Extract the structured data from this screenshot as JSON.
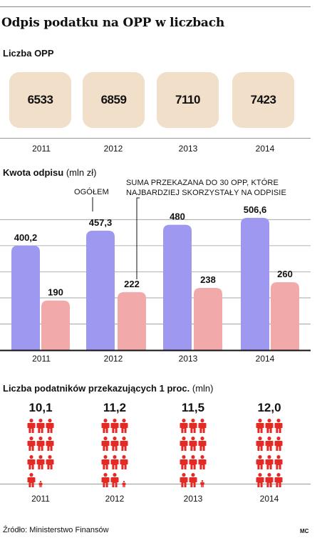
{
  "title": "Odpis podatku na OPP w liczbach",
  "sections": {
    "opp_count": {
      "title": "Liczba OPP"
    },
    "amount": {
      "title": "Kwota odpisu",
      "unit": "(mln zł)"
    },
    "taxpayers": {
      "title": "Liczba podatników przekazujących 1 proc.",
      "unit": "(mln)"
    }
  },
  "annotations": {
    "total": "OGÓŁEM",
    "top30_line1": "SUMA PRZEKAZANA DO 30 OPP, KTÓRE",
    "top30_line2": "NAJBARDZIEJ SKORZYSTAŁY NA ODPISIE"
  },
  "source": "Źródło: Ministerstwo Finansów",
  "credit": "MC",
  "colors": {
    "card": "#f1dfc9",
    "total_bar": "#9e98f0",
    "top30_bar": "#f2a9aa",
    "person": "#e52a25",
    "grid": "#9a9a9a"
  },
  "chart_data": [
    {
      "type": "table",
      "categories": [
        "2011",
        "2012",
        "2013",
        "2014"
      ],
      "values": [
        "6533",
        "6859",
        "7110",
        "7423"
      ]
    },
    {
      "type": "bar",
      "categories": [
        "2011",
        "2012",
        "2013",
        "2014"
      ],
      "series": [
        {
          "name": "OGÓŁEM",
          "values": [
            400.2,
            457.3,
            480,
            506.6
          ],
          "labels": [
            "400,2",
            "457,3",
            "480",
            "506,6"
          ]
        },
        {
          "name": "SUMA PRZEKAZANA DO 30 OPP, KTÓRE NAJBARDZIEJ SKORZYSTAŁY NA ODPISIE",
          "values": [
            190,
            222,
            238,
            260
          ],
          "labels": [
            "190",
            "222",
            "238",
            "260"
          ]
        }
      ],
      "ylim": [
        0,
        520
      ],
      "grid": true
    },
    {
      "type": "bar",
      "categories": [
        "2011",
        "2012",
        "2013",
        "2014"
      ],
      "values": [
        10.1,
        11.2,
        11.5,
        12.0
      ],
      "labels": [
        "10,1",
        "11,2",
        "11,5",
        "12,0"
      ]
    }
  ]
}
